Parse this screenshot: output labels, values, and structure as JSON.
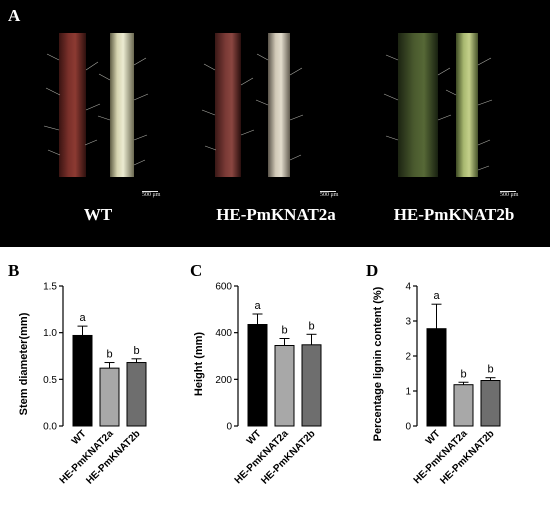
{
  "panel_a": {
    "label": "A",
    "captions": [
      "WT",
      "HE-PmKNAT2a",
      "HE-PmKNAT2b"
    ],
    "scale_text": "500 μm",
    "stem_colors": [
      [
        "#6e2a26",
        "#c9c6a2"
      ],
      [
        "#6a2a28",
        "#c8c0a6"
      ],
      [
        "#3f4f28",
        "#9fae6c"
      ]
    ]
  },
  "chart_data": [
    {
      "panel": "B",
      "type": "bar",
      "categories": [
        "WT",
        "HE-PmKNAT2a",
        "HE-PmKNAT2b"
      ],
      "values": [
        0.97,
        0.62,
        0.68
      ],
      "errors": [
        0.1,
        0.06,
        0.04
      ],
      "significance": [
        "a",
        "b",
        "b"
      ],
      "bar_colors": [
        "#000000",
        "#a8a8a8",
        "#6e6e6e"
      ],
      "ylabel": "Stem diameter(mm)",
      "ylim": [
        0,
        1.5
      ],
      "yticks": [
        "0.0",
        "0.5",
        "1.0",
        "1.5"
      ],
      "ytick_values": [
        0,
        0.5,
        1.0,
        1.5
      ]
    },
    {
      "panel": "C",
      "type": "bar",
      "categories": [
        "WT",
        "HE-PmKNAT2a",
        "HE-PmKNAT2b"
      ],
      "values": [
        435,
        345,
        348
      ],
      "errors": [
        45,
        30,
        45
      ],
      "significance": [
        "a",
        "b",
        "b"
      ],
      "bar_colors": [
        "#000000",
        "#a8a8a8",
        "#6e6e6e"
      ],
      "ylabel": "Height (mm)",
      "ylim": [
        0,
        600
      ],
      "yticks": [
        "0",
        "200",
        "400",
        "600"
      ],
      "ytick_values": [
        0,
        200,
        400,
        600
      ]
    },
    {
      "panel": "D",
      "type": "bar",
      "categories": [
        "WT",
        "HE-PmKNAT2a",
        "HE-PmKNAT2b"
      ],
      "values": [
        2.78,
        1.18,
        1.3
      ],
      "errors": [
        0.7,
        0.07,
        0.08
      ],
      "significance": [
        "a",
        "b",
        "b"
      ],
      "bar_colors": [
        "#000000",
        "#a8a8a8",
        "#6e6e6e"
      ],
      "ylabel": "Percentage lignin content (%)",
      "ylim": [
        0,
        4
      ],
      "yticks": [
        "0",
        "1",
        "2",
        "3",
        "4"
      ],
      "ytick_values": [
        0,
        1,
        2,
        3,
        4
      ]
    }
  ]
}
